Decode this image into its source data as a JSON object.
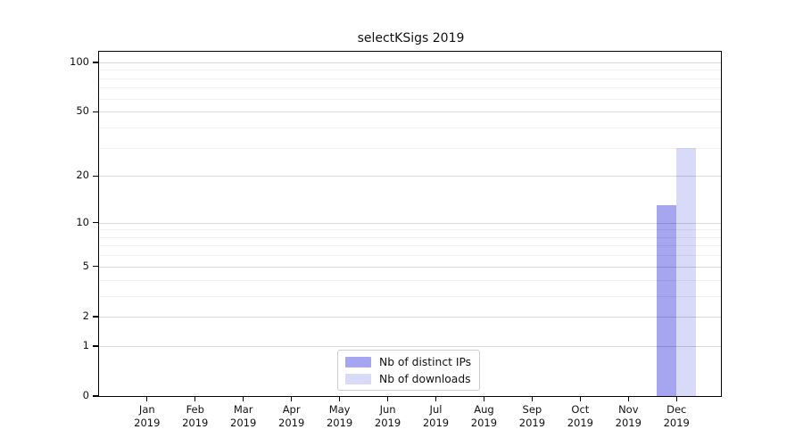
{
  "chart_data": {
    "type": "bar",
    "title": "selectKSigs 2019",
    "x_tick_labels": [
      [
        "Jan",
        "2019"
      ],
      [
        "Feb",
        "2019"
      ],
      [
        "Mar",
        "2019"
      ],
      [
        "Apr",
        "2019"
      ],
      [
        "May",
        "2019"
      ],
      [
        "Jun",
        "2019"
      ],
      [
        "Jul",
        "2019"
      ],
      [
        "Aug",
        "2019"
      ],
      [
        "Sep",
        "2019"
      ],
      [
        "Oct",
        "2019"
      ],
      [
        "Nov",
        "2019"
      ],
      [
        "Dec",
        "2019"
      ]
    ],
    "series": [
      {
        "name": "Nb of distinct IPs",
        "color": "#a5a5f0",
        "values": [
          0,
          0,
          0,
          0,
          0,
          0,
          0,
          0,
          0,
          0,
          0,
          13
        ]
      },
      {
        "name": "Nb of downloads",
        "color": "#d9d9f8",
        "values": [
          0,
          0,
          0,
          0,
          0,
          0,
          0,
          0,
          0,
          0,
          0,
          30
        ]
      }
    ],
    "y_scale": "log1p",
    "y_tick_values": [
      0,
      1,
      2,
      5,
      10,
      20,
      50,
      100
    ],
    "y_minor_grid_values": [
      3,
      4,
      6,
      7,
      8,
      9,
      30,
      40,
      60,
      70,
      80,
      90
    ],
    "ylim": [
      0,
      116
    ],
    "grid": "horizontal",
    "legend": {
      "position": "lower center",
      "entries": [
        "Nb of distinct IPs",
        "Nb of downloads"
      ]
    }
  }
}
